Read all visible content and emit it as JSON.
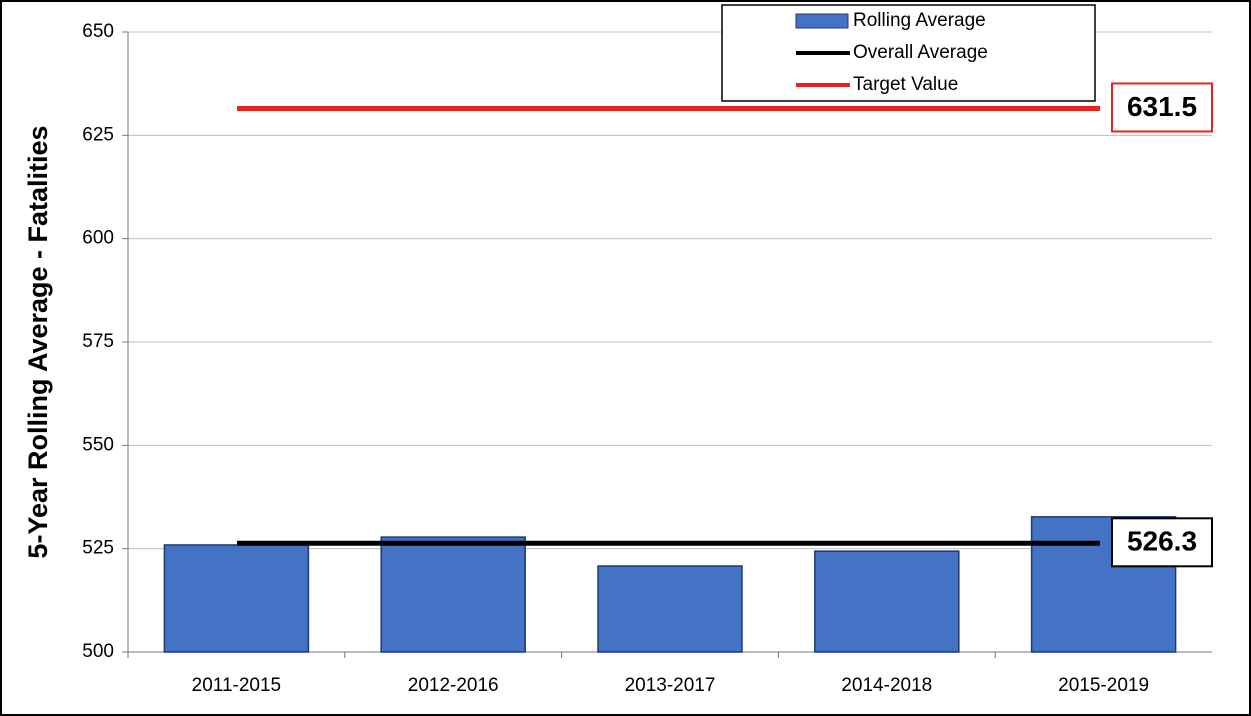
{
  "chart_data": {
    "type": "bar",
    "categories": [
      "2011-2015",
      "2012-2016",
      "2013-2017",
      "2014-2018",
      "2015-2019"
    ],
    "series": [
      {
        "name": "Rolling Average",
        "color": "#4472c4",
        "values": [
          525.9,
          527.8,
          520.8,
          524.4,
          532.7
        ]
      }
    ],
    "lines": [
      {
        "name": "Overall Average",
        "color": "#000000",
        "value": 526.3
      },
      {
        "name": "Target Value",
        "color": "#e8231d",
        "value": 631.5
      }
    ],
    "ylabel": "5-Year Rolling Average - Fatalities",
    "ylim": [
      500,
      650
    ],
    "yticks": [
      500,
      525,
      550,
      575,
      600,
      625,
      650
    ],
    "grid": true
  }
}
